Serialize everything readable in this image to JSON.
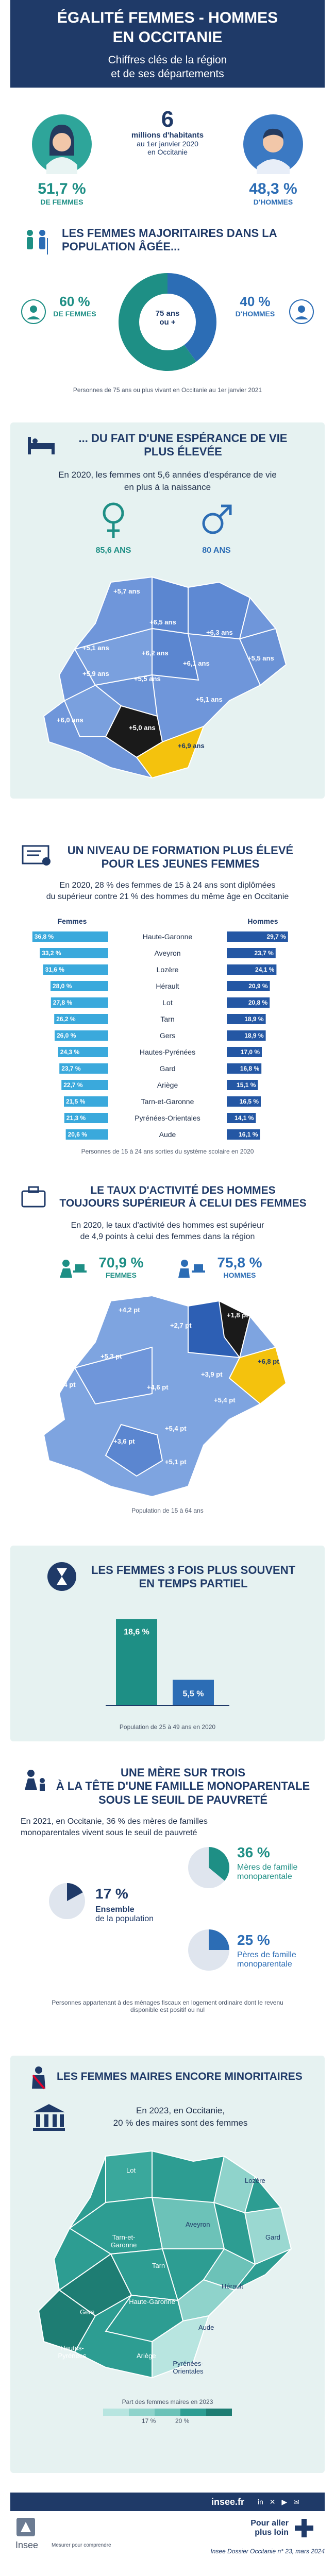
{
  "header": {
    "title_line1": "ÉGALITÉ FEMMES - HOMMES",
    "title_line2": "EN OCCITANIE",
    "subtitle_line1": "Chiffres clés de la région",
    "subtitle_line2": "et de ses départements"
  },
  "population": {
    "number": "6",
    "caption_line1": "millions d'habitants",
    "caption_line2": "au 1er janvier 2020",
    "caption_line3": "en Occitanie",
    "women_pct": "51,7 %",
    "women_label": "DE FEMMES",
    "men_pct": "48,3 %",
    "men_label": "D'HOMMES"
  },
  "elderly": {
    "title_line1": "LES FEMMES MAJORITAIRES DANS LA",
    "title_line2": "POPULATION ÂGÉE...",
    "women_pct": "60 %",
    "women_label": "DE FEMMES",
    "men_pct": "40 %",
    "men_label": "D'HOMMES",
    "donut_line1": "75 ans",
    "donut_line2": "ou +",
    "women_share": 0.6,
    "note": "Personnes de 75 ans ou plus vivant en Occitanie au 1er janvier 2021"
  },
  "life": {
    "title_line1": "... DU FAIT D'UNE ESPÉRANCE DE VIE",
    "title_line2": "PLUS ÉLEVÉE",
    "text_line1": "En 2020, les femmes ont 5,6 années d'espérance de vie",
    "text_line2": "en plus à la naissance",
    "women_value": "85,6 ANS",
    "men_value": "80 ANS",
    "map_labels": [
      "+5,7 ans",
      "+6,3 ans",
      "+6,5 ans",
      "+5,1 ans",
      "+6,2 ans",
      "+6,1 ans",
      "+5,5 ans",
      "+5,9 ans",
      "+5,5 ans",
      "+5,1 ans",
      "+5,0 ans",
      "+6,0 ans",
      "+6,9 ans"
    ]
  },
  "education": {
    "title_line1": "UN NIVEAU DE FORMATION PLUS ÉLEVÉ",
    "title_line2": "POUR LES JEUNES FEMMES",
    "text_line1": "En 2020, 28 % des femmes de 15 à 24 ans sont diplômées",
    "text_line2": "du supérieur contre 21 % des hommes du même âge en Occitanie",
    "women_header": "Femmes",
    "men_header": "Hommes",
    "note": "Personnes de 15 à 24 ans sorties du système scolaire en 2020"
  },
  "chart_data": {
    "type": "bar",
    "categories": [
      "Haute-Garonne",
      "Aveyron",
      "Lozère",
      "Hérault",
      "Lot",
      "Tarn",
      "Gers",
      "Hautes-Pyrénées",
      "Gard",
      "Ariège",
      "Tarn-et-Garonne",
      "Pyrénées-Orientales",
      "Aude"
    ],
    "series": [
      {
        "name": "Femmes",
        "values": [
          36.8,
          33.2,
          31.6,
          28.0,
          27.8,
          26.2,
          26.0,
          24.3,
          23.7,
          22.7,
          21.5,
          21.3,
          20.6
        ],
        "labels": [
          "36,8 %",
          "33,2 %",
          "31,6 %",
          "28,0 %",
          "27,8 %",
          "26,2 %",
          "26,0 %",
          "24,3 %",
          "23,7 %",
          "22,7 %",
          "21,5 %",
          "21,3 %",
          "20,6 %"
        ]
      },
      {
        "name": "Hommes",
        "values": [
          29.7,
          23.7,
          24.1,
          20.9,
          20.8,
          18.9,
          18.9,
          17.0,
          16.8,
          15.1,
          16.5,
          14.1,
          16.1
        ],
        "labels": [
          "29,7 %",
          "23,7 %",
          "24,1 %",
          "20,9 %",
          "20,8 %",
          "18,9 %",
          "18,9 %",
          "17,0 %",
          "16,8 %",
          "15,1 %",
          "16,5 %",
          "14,1 %",
          "16,1 %"
        ]
      }
    ],
    "colors": {
      "women": "#3aa9dc",
      "men": "#2457a4"
    }
  },
  "activity": {
    "title_line1": "LE TAUX D'ACTIVITÉ DES HOMMES",
    "title_line2": "TOUJOURS SUPÉRIEUR À CELUI DES FEMMES",
    "text_line1": "En 2020, le taux d'activité des hommes est supérieur",
    "text_line2": "de 4,9 points à celui des femmes dans la région",
    "women_pct": "70,9 %",
    "women_label": "FEMMES",
    "men_pct": "75,8 %",
    "men_label": "HOMMES",
    "map_labels": [
      "+4,2 pt",
      "+2,7 pt",
      "+1,8 pt",
      "+5,3 pt",
      "+3,4 pt",
      "+4,6 pt",
      "+3,9 pt",
      "+6,8 pt",
      "+5,4 pt",
      "+5,4 pt",
      "+3,6 pt",
      "+5,1 pt"
    ],
    "note": "Population de 15 à 64 ans"
  },
  "parttime": {
    "title_line1": "LES FEMMES 3 FOIS PLUS SOUVENT",
    "title_line2": "EN TEMPS PARTIEL",
    "women_value": "18,6 %",
    "men_value": "5,5 %",
    "women_share": 18.6,
    "men_share": 5.5,
    "note": "Population de 25 à 49 ans en 2020"
  },
  "poverty": {
    "title_line1": "UNE MÈRE SUR TROIS",
    "title_line2": "À LA TÊTE D'UNE FAMILLE MONOPARENTALE",
    "title_line3": "SOUS LE SEUIL DE PAUVRETÉ",
    "text_line1": "En 2021, en Occitanie, 36 % des mères de familles",
    "text_line2": "monoparentales vivent sous le seuil de pauvreté",
    "mothers_pct": "36 %",
    "mothers_label_line1": "Mères de famille",
    "mothers_label_line2": "monoparentale",
    "total_pct": "17 %",
    "total_label_line1": "Ensemble",
    "total_label_line2": "de la population",
    "fathers_pct": "25 %",
    "fathers_label_line1": "Pères de famille",
    "fathers_label_line2": "monoparentale",
    "mothers_share": 0.36,
    "total_share": 0.17,
    "fathers_share": 0.25,
    "note_line1": "Personnes appartenant à des ménages fiscaux en logement ordinaire dont le revenu",
    "note_line2": "disponible est positif ou nul"
  },
  "mayors": {
    "title": "LES FEMMES MAIRES ENCORE MINORITAIRES",
    "text_line1": "En 2023, en Occitanie,",
    "text_line2": "20 % des maires sont des femmes",
    "map_labels": [
      "Lot",
      "Lozère",
      "Aveyron",
      "Tarn-et-Garonne",
      "Gard",
      "Tarn",
      "Gers",
      "Haute-Garonne",
      "Hérault",
      "Hautes-Pyrénées",
      "Aude",
      "Ariège",
      "Pyrénées-Orientales"
    ],
    "legend_title": "Part des femmes maires en 2023",
    "legend_low": "17 %",
    "legend_high": "20 %"
  },
  "footer": {
    "site": "insee.fr",
    "logo": "Insee",
    "logo_caption": "Mesurer pour comprendre",
    "more_line1": "Pour aller",
    "more_line2": "plus loin",
    "ref": "Insee Dossier Occitanie n° 23, mars 2024"
  }
}
